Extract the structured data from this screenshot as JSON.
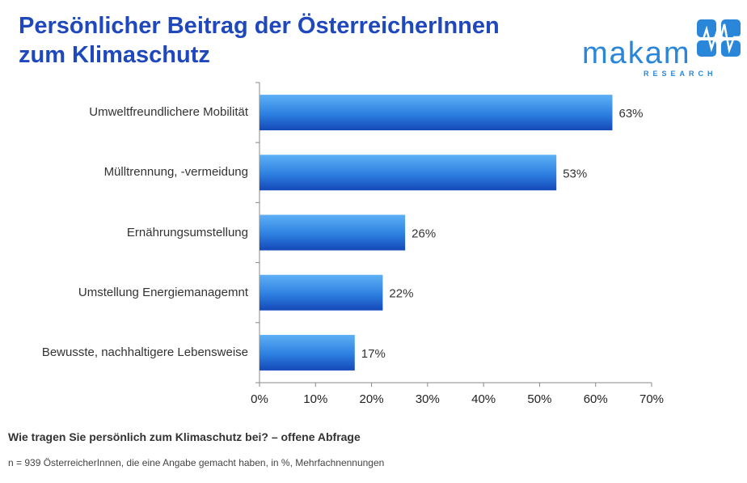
{
  "header": {
    "title_line1": "Persönlicher Beitrag der ÖsterreicherInnen",
    "title_line2": "zum Klimaschutz"
  },
  "logo": {
    "wordmark": "makam",
    "subtitle": "RESEARCH",
    "icon": "heartbeat-icon",
    "color": "#2a86d9"
  },
  "colors": {
    "title": "#1f48bd",
    "bar_top": "#5db0f5",
    "bar_bottom": "#1448b8"
  },
  "chart_data": {
    "type": "bar",
    "orientation": "horizontal",
    "title": "Persönlicher Beitrag der ÖsterreicherInnen zum Klimaschutz",
    "categories": [
      "Umweltfreundlichere Mobilität",
      "Mülltrennung, -vermeidung",
      "Ernährungsumstellung",
      "Umstellung Energiemanagemnt",
      "Bewusste, nachhaltigere Lebensweise"
    ],
    "values": [
      63,
      53,
      26,
      22,
      17
    ],
    "value_labels": [
      "63%",
      "53%",
      "26%",
      "22%",
      "17%"
    ],
    "xlim": [
      0,
      70
    ],
    "x_ticks": [
      0,
      10,
      20,
      30,
      40,
      50,
      60,
      70
    ],
    "x_tick_labels": [
      "0%",
      "10%",
      "20%",
      "30%",
      "40%",
      "50%",
      "60%",
      "70%"
    ],
    "xlabel": "",
    "ylabel": "",
    "grid": false,
    "legend": "none"
  },
  "footer": {
    "question": "Wie tragen Sie persönlich zum Klimaschutz bei? – offene Abfrage",
    "note": "n = 939 ÖsterreicherInnen, die eine Angabe gemacht haben, in %, Mehrfachnennungen"
  }
}
